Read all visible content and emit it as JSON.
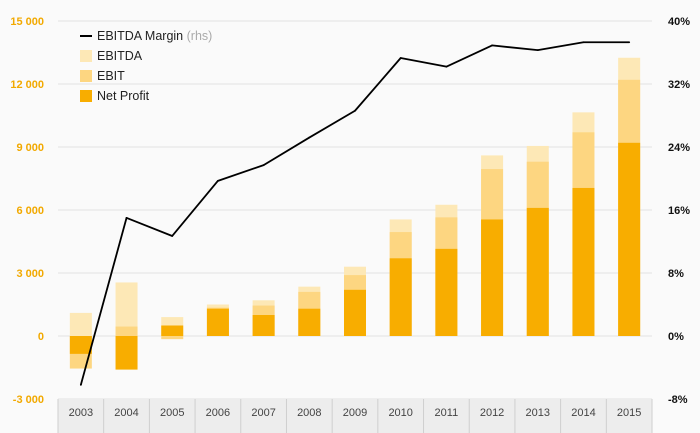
{
  "chart_data": {
    "type": "bar",
    "categories": [
      "2003",
      "2004",
      "2005",
      "2006",
      "2007",
      "2008",
      "2009",
      "2010",
      "2011",
      "2012",
      "2013",
      "2014",
      "2015"
    ],
    "series": [
      {
        "name": "EBITDA",
        "values": [
          1100,
          2550,
          900,
          1500,
          1700,
          2350,
          3300,
          5550,
          6250,
          8600,
          9050,
          10650,
          13250
        ],
        "color": "#fde8b6"
      },
      {
        "name": "EBIT",
        "values": [
          -1550,
          450,
          -150,
          1350,
          1450,
          2100,
          2900,
          4950,
          5650,
          7950,
          8300,
          9700,
          12200
        ],
        "color": "#fdd681"
      },
      {
        "name": "Net Profit",
        "values": [
          -850,
          -1600,
          500,
          1300,
          1000,
          1300,
          2200,
          3700,
          4150,
          5550,
          6100,
          7050,
          9200
        ],
        "color": "#f8ad00"
      },
      {
        "name": "EBITDA Margin",
        "suffix": "(rhs)",
        "axis": "right",
        "type": "line",
        "values": [
          -6.2,
          15,
          12.7,
          19.7,
          21.7,
          25.2,
          28.6,
          35.3,
          34.2,
          36.9,
          36.3,
          37.3,
          37.3
        ],
        "color": "#000000"
      }
    ],
    "y_left": {
      "min": -3000,
      "max": 15000,
      "ticks": [
        -3000,
        0,
        3000,
        6000,
        9000,
        12000,
        15000
      ],
      "tick_labels": [
        "-3 000",
        "0",
        "3 000",
        "6 000",
        "9 000",
        "12 000",
        "15 000"
      ],
      "color": "#f2a900"
    },
    "y_right": {
      "min": -8,
      "max": 40,
      "ticks": [
        -8,
        0,
        8,
        16,
        24,
        32,
        40
      ],
      "tick_labels": [
        "-8%",
        "0%",
        "8%",
        "16%",
        "24%",
        "32%",
        "40%"
      ]
    },
    "grid": true,
    "legend": "top-left",
    "title": "",
    "xlabel": "",
    "ylabel": ""
  }
}
